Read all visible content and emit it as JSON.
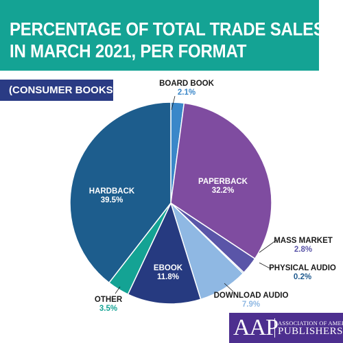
{
  "header": {
    "title_line1": "PERCENTAGE OF TOTAL TRADE SALES",
    "title_line2": "IN MARCH 2021, PER FORMAT",
    "subtitle": "(CONSUMER BOOKS)"
  },
  "logo": {
    "mark": "AAP",
    "line1": "ASSOCIATION OF AMERICAN",
    "line2": "PUBLISHERS"
  },
  "chart_data": {
    "type": "pie",
    "title": "PERCENTAGE OF TOTAL TRADE SALES IN MARCH 2021, PER FORMAT",
    "subtitle": "(CONSUMER BOOKS)",
    "slices": [
      {
        "label": "BOARD BOOK",
        "value_label": "2.1%",
        "value": 2.1,
        "color": "#3a87c9",
        "label_color": "#3a87c9"
      },
      {
        "label": "PAPERBACK",
        "value_label": "32.2%",
        "value": 32.2,
        "color": "#7f4ca0",
        "label_color": "#ffffff"
      },
      {
        "label": "MASS MARKET",
        "value_label": "2.8%",
        "value": 2.8,
        "color": "#5a55a8",
        "label_color": "#5a55a8"
      },
      {
        "label": "PHYSICAL AUDIO",
        "value_label": "0.2%",
        "value": 0.2,
        "color": "#1f5a8e",
        "label_color": "#1f5a8e"
      },
      {
        "label": "DOWNLOAD AUDIO",
        "value_label": "7.9%",
        "value": 7.9,
        "color": "#8fb8e3",
        "label_color": "#8fb8e3"
      },
      {
        "label": "EBOOK",
        "value_label": "11.8%",
        "value": 11.8,
        "color": "#263a80",
        "label_color": "#ffffff"
      },
      {
        "label": "OTHER",
        "value_label": "3.5%",
        "value": 3.5,
        "color": "#14a394",
        "label_color": "#14a394"
      },
      {
        "label": "HARDBACK",
        "value_label": "39.5%",
        "value": 39.5,
        "color": "#1d5d8d",
        "label_color": "#ffffff"
      }
    ]
  }
}
